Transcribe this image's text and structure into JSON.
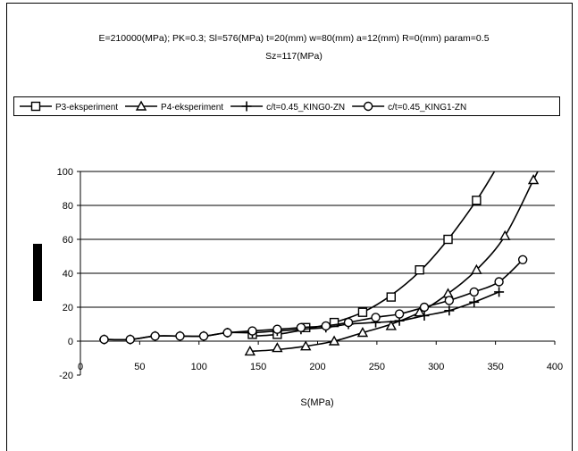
{
  "chart_data": {
    "type": "line",
    "title": "E=210000(MPa); PK=0.3; Sl=576(MPa) t=20(mm) w=80(mm) a=12(mm) R=0(mm) param=0.5",
    "subtitle": "Sz=117(MPa)",
    "xlabel": "S(MPa)",
    "ylabel": "",
    "xlim": [
      0,
      400
    ],
    "ylim": [
      -20,
      100
    ],
    "xticks": [
      0,
      50,
      100,
      150,
      200,
      250,
      300,
      350,
      400
    ],
    "yticks": [
      -20,
      0,
      20,
      40,
      60,
      80,
      100
    ],
    "grid": "horizontal",
    "legend_position": "top",
    "series": [
      {
        "name": "P3-eksperiment",
        "marker": "square",
        "points": [
          [
            145,
            4
          ],
          [
            166,
            4
          ],
          [
            190,
            8
          ],
          [
            214,
            11
          ],
          [
            238,
            17
          ],
          [
            262,
            26
          ],
          [
            286,
            42
          ],
          [
            310,
            60
          ],
          [
            334,
            83
          ]
        ],
        "curve": [
          [
            145,
            3
          ],
          [
            166,
            4
          ],
          [
            190,
            7
          ],
          [
            214,
            11
          ],
          [
            238,
            17
          ],
          [
            262,
            27
          ],
          [
            286,
            41
          ],
          [
            310,
            60
          ],
          [
            334,
            83
          ],
          [
            350,
            101
          ]
        ]
      },
      {
        "name": "P4-eksperiment",
        "marker": "triangle",
        "points": [
          [
            143,
            -6
          ],
          [
            166,
            -4
          ],
          [
            190,
            -3
          ],
          [
            214,
            0
          ],
          [
            238,
            5
          ],
          [
            262,
            9
          ],
          [
            286,
            17
          ],
          [
            310,
            28
          ],
          [
            334,
            42
          ],
          [
            358,
            62
          ],
          [
            382,
            95
          ]
        ],
        "curve": [
          [
            143,
            -6
          ],
          [
            166,
            -5
          ],
          [
            190,
            -3
          ],
          [
            214,
            0
          ],
          [
            238,
            5
          ],
          [
            262,
            10
          ],
          [
            286,
            17
          ],
          [
            310,
            28
          ],
          [
            334,
            42
          ],
          [
            358,
            62
          ],
          [
            382,
            95
          ],
          [
            388,
            103
          ]
        ]
      },
      {
        "name": "c/t=0.45_KING0-ZN",
        "marker": "plus",
        "points": [
          [
            20,
            1
          ],
          [
            42,
            1
          ],
          [
            63,
            3
          ],
          [
            84,
            3
          ],
          [
            104,
            3
          ],
          [
            124,
            5
          ],
          [
            145,
            5
          ],
          [
            166,
            6
          ],
          [
            186,
            7
          ],
          [
            207,
            8
          ],
          [
            226,
            10
          ],
          [
            249,
            11
          ],
          [
            269,
            12
          ],
          [
            290,
            15
          ],
          [
            311,
            18
          ],
          [
            332,
            23
          ],
          [
            353,
            29
          ]
        ],
        "curve": [
          [
            20,
            1
          ],
          [
            42,
            1
          ],
          [
            63,
            3
          ],
          [
            84,
            3
          ],
          [
            104,
            3
          ],
          [
            124,
            5
          ],
          [
            145,
            5
          ],
          [
            166,
            6
          ],
          [
            186,
            7
          ],
          [
            207,
            8
          ],
          [
            226,
            10
          ],
          [
            249,
            11
          ],
          [
            269,
            12
          ],
          [
            290,
            15
          ],
          [
            311,
            18
          ],
          [
            332,
            23
          ],
          [
            353,
            29
          ]
        ]
      },
      {
        "name": "c/t=0.45_KING1-ZN",
        "marker": "circle",
        "points": [
          [
            20,
            1
          ],
          [
            42,
            1
          ],
          [
            63,
            3
          ],
          [
            84,
            3
          ],
          [
            104,
            3
          ],
          [
            124,
            5
          ],
          [
            145,
            6
          ],
          [
            166,
            7
          ],
          [
            186,
            8
          ],
          [
            207,
            9
          ],
          [
            226,
            11
          ],
          [
            249,
            14
          ],
          [
            269,
            16
          ],
          [
            290,
            20
          ],
          [
            311,
            24
          ],
          [
            332,
            29
          ],
          [
            353,
            35
          ],
          [
            373,
            48
          ]
        ],
        "curve": [
          [
            20,
            1
          ],
          [
            42,
            1
          ],
          [
            63,
            3
          ],
          [
            84,
            3
          ],
          [
            104,
            3
          ],
          [
            124,
            5
          ],
          [
            145,
            6
          ],
          [
            166,
            7
          ],
          [
            186,
            8
          ],
          [
            207,
            9
          ],
          [
            226,
            11
          ],
          [
            249,
            14
          ],
          [
            269,
            16
          ],
          [
            290,
            20
          ],
          [
            311,
            24
          ],
          [
            332,
            29
          ],
          [
            353,
            35
          ],
          [
            373,
            48
          ]
        ]
      }
    ]
  }
}
